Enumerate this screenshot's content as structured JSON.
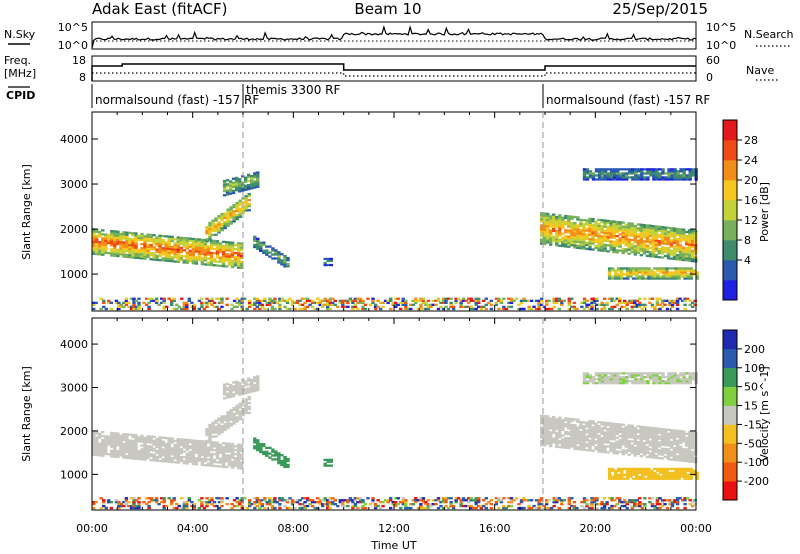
{
  "header": {
    "radar": "Adak East (fitACF)",
    "beam": "Beam 10",
    "date": "25/Sep/2015"
  },
  "noise_panel": {
    "left_label": "N.Sky",
    "right_label": "N.Search",
    "left_ticks": [
      "10^5",
      "10^0"
    ],
    "right_ticks": [
      "10^5",
      "10^0"
    ]
  },
  "freq_panel": {
    "left_label_1": "Freq.",
    "left_label_2": "[MHz]",
    "right_label": "Nave",
    "left_ticks": [
      "18",
      "8"
    ],
    "right_ticks": [
      "60",
      "0"
    ]
  },
  "cpid": {
    "label": "CPID",
    "modes": [
      {
        "text": "normalsound (fast) -157 RF",
        "start_hour": 0
      },
      {
        "text": "themis 3300 RF",
        "start_hour": 6
      },
      {
        "text": "normalsound (fast) -157 RF",
        "start_hour": 18
      }
    ]
  },
  "chart_data": {
    "type": "heatmap",
    "x_axis": {
      "label": "Time UT",
      "range_hours": [
        0,
        24
      ],
      "tick_labels": [
        "00:00",
        "04:00",
        "08:00",
        "12:00",
        "16:00",
        "20:00",
        "00:00"
      ]
    },
    "y_axis": {
      "label": "Slant Range [km]",
      "range_km": [
        180,
        4600
      ],
      "tick_labels": [
        "1000",
        "2000",
        "3000",
        "4000"
      ]
    },
    "mode_changes_hours": [
      6,
      18
    ],
    "panels": [
      {
        "name": "power",
        "colorbar_label": "Power [dB]",
        "colorbar_ticks": [
          "28",
          "24",
          "20",
          "16",
          "12",
          "8",
          "4"
        ],
        "range": [
          0,
          32
        ],
        "colors": [
          "#1f20e0",
          "#2a5ab0",
          "#3f8c6c",
          "#77b05a",
          "#c4d23a",
          "#f4c81e",
          "#f28d1a",
          "#ee4a14",
          "#e31a1c"
        ]
      },
      {
        "name": "velocity",
        "colorbar_label": "Velocity [m s^-1]",
        "colorbar_ticks": [
          "200",
          "100",
          "50",
          "15",
          "-15",
          "-50",
          "-100",
          "-200"
        ],
        "range": [
          -250,
          250
        ],
        "colors": [
          "#e81010",
          "#f15a10",
          "#f28f1a",
          "#f2c020",
          "#c8c8c0",
          "#7ed040",
          "#3a9a5a",
          "#2a5ab0",
          "#1f2ab0"
        ]
      }
    ],
    "echo_regions": [
      {
        "t": [
          0.0,
          6.0
        ],
        "r_center": [
          1700,
          1380
        ],
        "r_width": 550,
        "power": 26,
        "velocity": 0
      },
      {
        "t": [
          4.5,
          6.2
        ],
        "r_center": [
          1900,
          2600
        ],
        "r_width": 400,
        "power": 22,
        "velocity": 5
      },
      {
        "t": [
          5.2,
          6.6
        ],
        "r_center": [
          2900,
          3100
        ],
        "r_width": 350,
        "power": 14,
        "velocity": 0
      },
      {
        "t": [
          6.4,
          7.8
        ],
        "r_center": [
          1700,
          1200
        ],
        "r_width": 250,
        "power": 12,
        "velocity": 80
      },
      {
        "t": [
          9.2,
          9.5
        ],
        "r_center": [
          1250,
          1250
        ],
        "r_width": 150,
        "power": 10,
        "velocity": 60
      },
      {
        "t": [
          17.8,
          24.0
        ],
        "r_center": [
          2000,
          1600
        ],
        "r_width": 700,
        "power": 24,
        "velocity": 0
      },
      {
        "t": [
          20.5,
          24.0
        ],
        "r_center": [
          1000,
          1000
        ],
        "r_width": 250,
        "power": 22,
        "velocity": -40
      },
      {
        "t": [
          19.5,
          24.0
        ],
        "r_center": [
          3200,
          3200
        ],
        "r_width": 250,
        "power": 10,
        "velocity": 10
      }
    ],
    "ground_scatter_band_km": [
      200,
      450
    ]
  }
}
